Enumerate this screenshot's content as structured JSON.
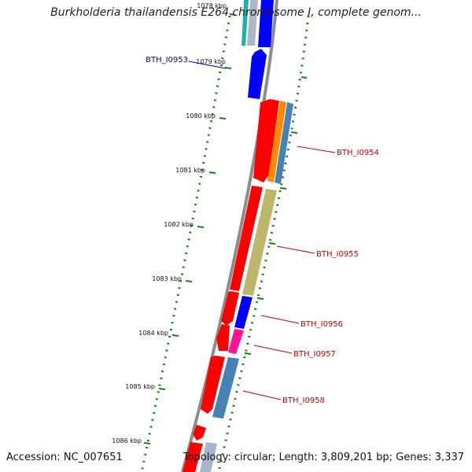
{
  "title": "Burkholderia thailandensis E264 chromosome I, complete genom...",
  "footer": {
    "accession": "Accession: NC_007651",
    "info": "Topology: circular; Length: 3,809,201 bp; Genes: 3,337"
  },
  "colors": {
    "backbone": "#8c8c8c",
    "tick": "#1e7a1e",
    "label_red": "#cc0000",
    "label_blue": "#0000cc",
    "forward": "#ff0000",
    "reverse": "#0000ff",
    "orange": "#ff8c00",
    "steelblue": "#4682b4",
    "khaki": "#bdb76b",
    "magenta": "#ff1493",
    "cyan": "#20b2aa"
  },
  "ticks": [
    {
      "label": "1078 kbp"
    },
    {
      "label": "1079 kbp"
    },
    {
      "label": "1080 kbp"
    },
    {
      "label": "1081 kbp"
    },
    {
      "label": "1082 kbp"
    },
    {
      "label": "1083 kbp"
    },
    {
      "label": "1084 kbp"
    },
    {
      "label": "1085 kbp"
    },
    {
      "label": "1086 kbp"
    }
  ],
  "gene_labels": [
    {
      "text": "BTH_I0953",
      "color": "blue"
    },
    {
      "text": "BTH_I0954",
      "color": "red"
    },
    {
      "text": "BTH_I0955",
      "color": "red"
    },
    {
      "text": "BTH_I0956",
      "color": "red"
    },
    {
      "text": "BTH_I0957",
      "color": "red"
    },
    {
      "text": "BTH_I0958",
      "color": "red"
    }
  ]
}
